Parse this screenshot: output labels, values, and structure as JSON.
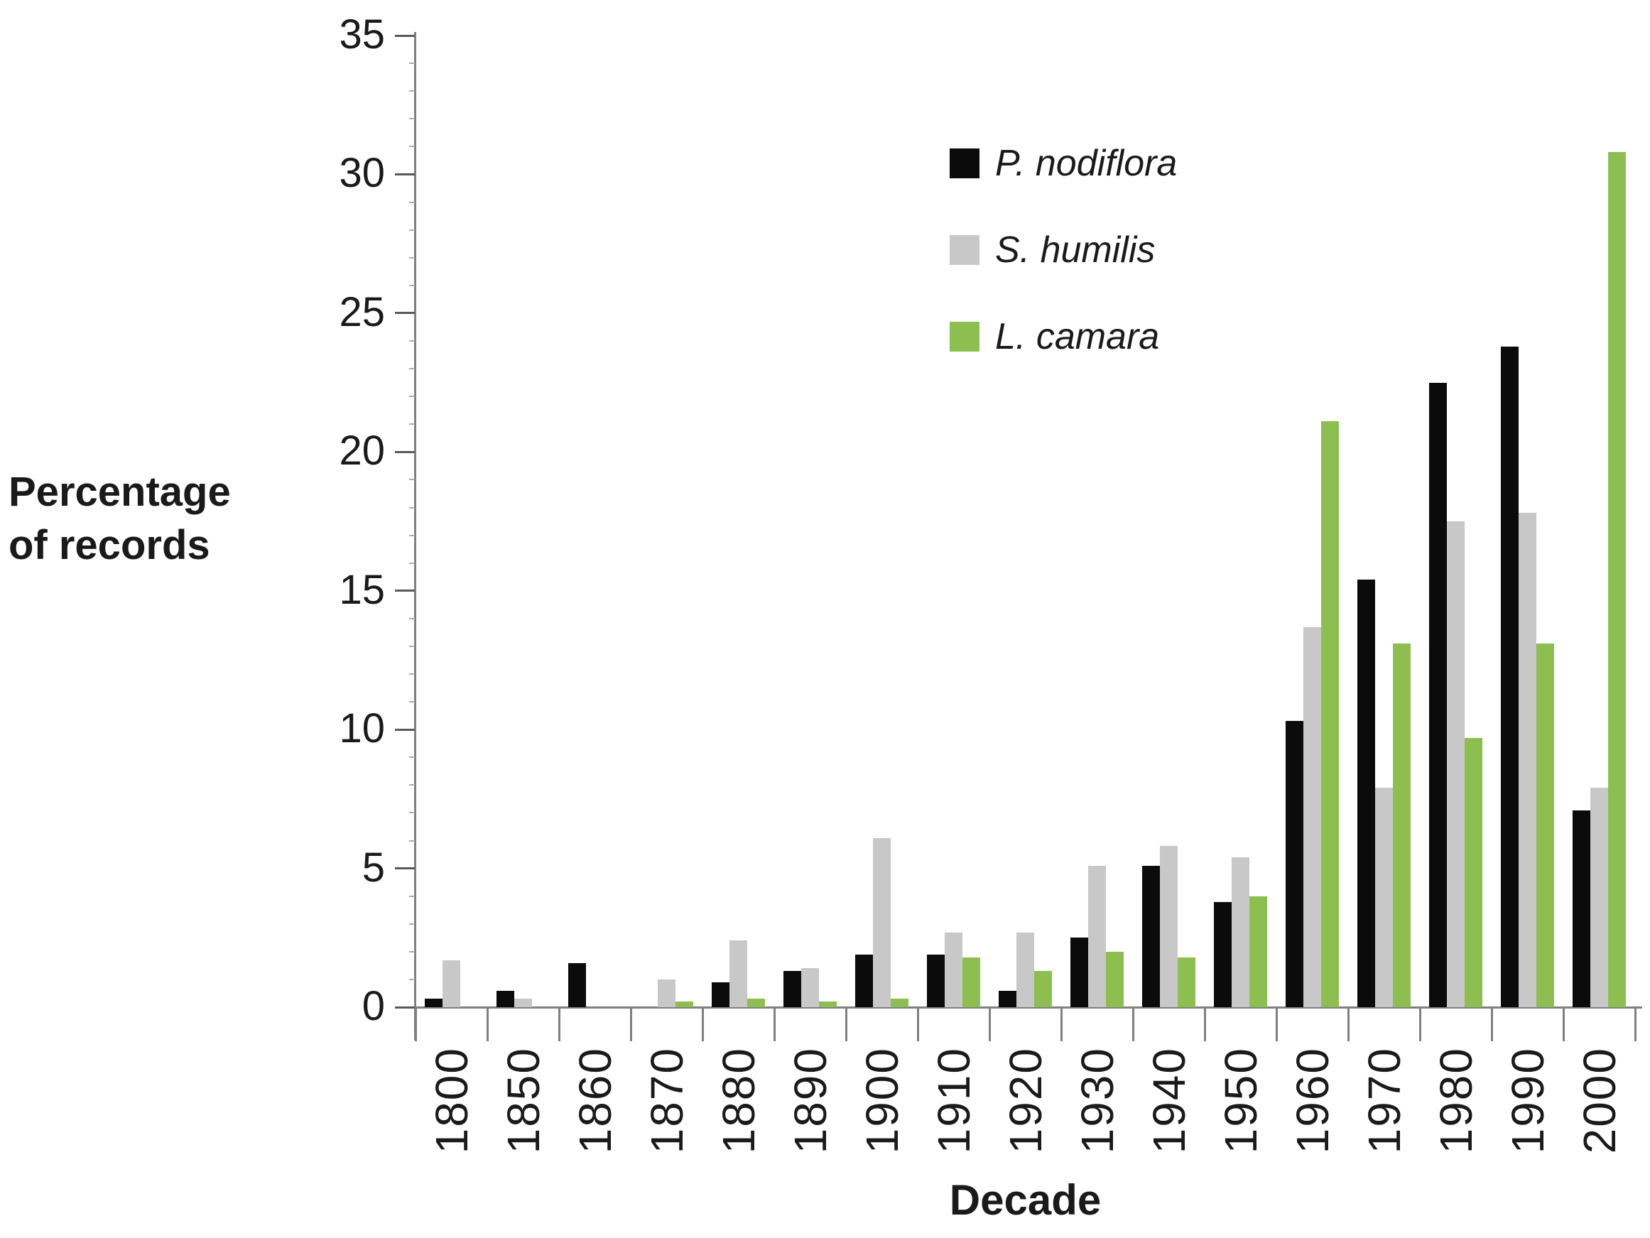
{
  "y_axis_title_line1": "Percentage",
  "y_axis_title_line2": "of records",
  "x_axis_title": "Decade",
  "colors": {
    "p_nodiflora": "#0b0b0b",
    "s_humilis": "#c8c8c8",
    "l_camara": "#8dbf50",
    "axis": "#7f7f7f",
    "text": "#1a1a1a"
  },
  "legend": [
    {
      "label": "P. nodiflora",
      "color": "#0b0b0b"
    },
    {
      "label": "S. humilis",
      "color": "#c8c8c8"
    },
    {
      "label": "L. camara",
      "color": "#8dbf50"
    }
  ],
  "y_ticks": [
    0,
    5,
    10,
    15,
    20,
    25,
    30,
    35
  ],
  "chart_data": {
    "type": "bar",
    "title": "",
    "xlabel": "Decade",
    "ylabel": "Percentage of records",
    "ylim": [
      0,
      35
    ],
    "grid": false,
    "legend_position": "top-right",
    "categories": [
      "1800",
      "1850",
      "1860",
      "1870",
      "1880",
      "1890",
      "1900",
      "1910",
      "1920",
      "1930",
      "1940",
      "1950",
      "1960",
      "1970",
      "1980",
      "1990",
      "2000"
    ],
    "series": [
      {
        "name": "P. nodiflora",
        "color": "#0b0b0b",
        "values": [
          0.3,
          0.6,
          1.6,
          0,
          0.9,
          1.3,
          1.9,
          1.9,
          0.6,
          2.5,
          5.1,
          3.8,
          10.3,
          15.4,
          22.5,
          23.8,
          7.1
        ]
      },
      {
        "name": "S. humilis",
        "color": "#c8c8c8",
        "values": [
          1.7,
          0.3,
          0,
          1.0,
          2.4,
          1.4,
          6.1,
          2.7,
          2.7,
          5.1,
          5.8,
          5.4,
          13.7,
          7.9,
          17.5,
          17.8,
          7.9
        ]
      },
      {
        "name": "L. camara",
        "color": "#8dbf50",
        "values": [
          0,
          0,
          0,
          0.2,
          0.3,
          0.2,
          0.3,
          1.8,
          1.3,
          2.0,
          1.8,
          4.0,
          21.1,
          13.1,
          9.7,
          13.1,
          30.8
        ]
      }
    ]
  }
}
